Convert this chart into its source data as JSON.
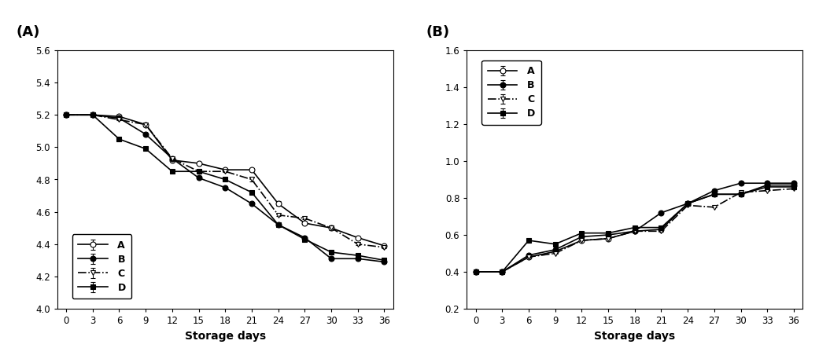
{
  "x": [
    0,
    3,
    6,
    9,
    12,
    15,
    18,
    21,
    24,
    27,
    30,
    33,
    36
  ],
  "A_pH": [
    5.2,
    5.2,
    5.19,
    5.14,
    4.92,
    4.9,
    4.86,
    4.86,
    4.65,
    4.53,
    4.5,
    4.44,
    4.39
  ],
  "B_pH": [
    5.2,
    5.2,
    5.18,
    5.08,
    4.93,
    4.81,
    4.75,
    4.65,
    4.52,
    4.44,
    4.31,
    4.31,
    4.29
  ],
  "C_pH": [
    5.2,
    5.2,
    5.17,
    5.14,
    4.93,
    4.85,
    4.85,
    4.8,
    4.58,
    4.56,
    4.5,
    4.4,
    4.38
  ],
  "D_pH": [
    5.2,
    5.2,
    5.05,
    4.99,
    4.85,
    4.85,
    4.8,
    4.72,
    4.52,
    4.43,
    4.35,
    4.33,
    4.3
  ],
  "A_acid": [
    0.4,
    0.4,
    0.48,
    0.51,
    0.57,
    0.58,
    0.62,
    0.63,
    0.77,
    0.82,
    0.82,
    0.87,
    0.87
  ],
  "B_acid": [
    0.4,
    0.4,
    0.49,
    0.52,
    0.59,
    0.6,
    0.62,
    0.72,
    0.77,
    0.84,
    0.88,
    0.88,
    0.88
  ],
  "C_acid": [
    0.4,
    0.4,
    0.48,
    0.5,
    0.57,
    0.58,
    0.62,
    0.62,
    0.76,
    0.75,
    0.83,
    0.84,
    0.85
  ],
  "D_acid": [
    0.4,
    0.4,
    0.57,
    0.55,
    0.61,
    0.61,
    0.64,
    0.64,
    0.77,
    0.82,
    0.82,
    0.86,
    0.86
  ],
  "A_pH_err": [
    0.005,
    0.005,
    0.005,
    0.005,
    0.005,
    0.005,
    0.005,
    0.01,
    0.015,
    0.005,
    0.015,
    0.005,
    0.005
  ],
  "B_pH_err": [
    0.005,
    0.005,
    0.005,
    0.005,
    0.005,
    0.005,
    0.005,
    0.005,
    0.005,
    0.005,
    0.005,
    0.005,
    0.005
  ],
  "C_pH_err": [
    0.005,
    0.005,
    0.005,
    0.005,
    0.005,
    0.005,
    0.005,
    0.01,
    0.005,
    0.005,
    0.005,
    0.005,
    0.005
  ],
  "D_pH_err": [
    0.005,
    0.005,
    0.005,
    0.005,
    0.005,
    0.005,
    0.005,
    0.005,
    0.005,
    0.005,
    0.005,
    0.005,
    0.005
  ],
  "A_acid_err": [
    0.003,
    0.003,
    0.003,
    0.003,
    0.003,
    0.003,
    0.003,
    0.003,
    0.003,
    0.003,
    0.003,
    0.003,
    0.003
  ],
  "B_acid_err": [
    0.003,
    0.003,
    0.003,
    0.003,
    0.003,
    0.003,
    0.003,
    0.003,
    0.003,
    0.003,
    0.003,
    0.003,
    0.003
  ],
  "C_acid_err": [
    0.003,
    0.003,
    0.003,
    0.003,
    0.003,
    0.003,
    0.003,
    0.003,
    0.003,
    0.003,
    0.003,
    0.003,
    0.003
  ],
  "D_acid_err": [
    0.003,
    0.003,
    0.003,
    0.003,
    0.003,
    0.003,
    0.003,
    0.003,
    0.003,
    0.003,
    0.003,
    0.003,
    0.003
  ],
  "xlabel": "Storage days",
  "panel_A_title": "(A)",
  "panel_B_title": "(B)",
  "pH_ylim": [
    4.0,
    5.6
  ],
  "pH_yticks": [
    4.0,
    4.2,
    4.4,
    4.6,
    4.8,
    5.0,
    5.2,
    5.4,
    5.6
  ],
  "acid_ylim": [
    0.2,
    1.6
  ],
  "acid_yticks": [
    0.2,
    0.4,
    0.6,
    0.8,
    1.0,
    1.2,
    1.4,
    1.6
  ],
  "xticks": [
    0,
    3,
    6,
    9,
    12,
    15,
    18,
    21,
    24,
    27,
    30,
    33,
    36
  ],
  "line_color": "#000000",
  "bg_color": "#ffffff"
}
